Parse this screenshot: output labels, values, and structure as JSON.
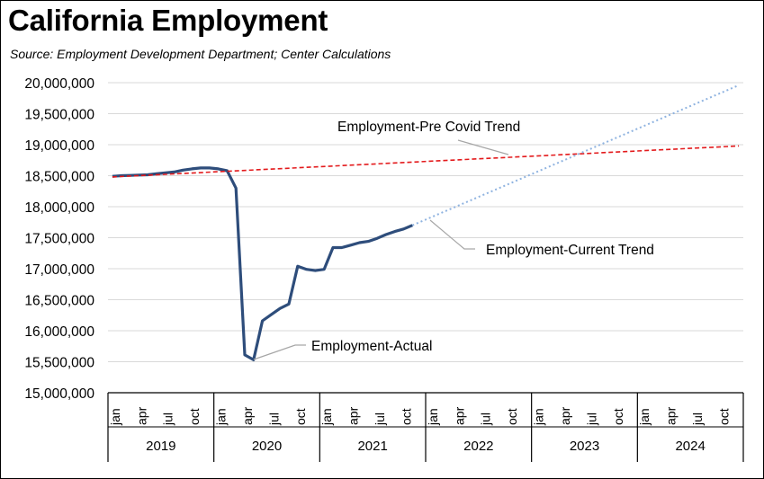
{
  "chart_data": {
    "type": "line",
    "title": "California Employment",
    "subtitle": "Source:  Employment Development Department; Center Calculations",
    "xlabel": "",
    "ylabel": "",
    "ylim": [
      15000000,
      20000000
    ],
    "yticks": [
      15000000,
      15500000,
      16000000,
      16500000,
      17000000,
      17500000,
      18000000,
      18500000,
      19000000,
      19500000,
      20000000
    ],
    "ytick_labels": [
      "15,000,000",
      "15,500,000",
      "16,000,000",
      "16,500,000",
      "17,000,000",
      "17,500,000",
      "18,000,000",
      "18,500,000",
      "19,000,000",
      "19,500,000",
      "20,000,000"
    ],
    "years": [
      "2019",
      "2020",
      "2021",
      "2022",
      "2023",
      "2024"
    ],
    "month_tick_labels": [
      "jan",
      "apr",
      "jul",
      "oct"
    ],
    "grid": true,
    "legend": "none",
    "series": [
      {
        "name": "Employment-Actual",
        "color": "#2e4d7b",
        "style": "solid",
        "x": [
          "2019-01",
          "2019-02",
          "2019-03",
          "2019-04",
          "2019-05",
          "2019-06",
          "2019-07",
          "2019-08",
          "2019-09",
          "2019-10",
          "2019-11",
          "2019-12",
          "2020-01",
          "2020-02",
          "2020-03",
          "2020-04",
          "2020-05",
          "2020-06",
          "2020-07",
          "2020-08",
          "2020-09",
          "2020-10",
          "2020-11",
          "2020-12",
          "2021-01",
          "2021-02",
          "2021-03",
          "2021-04",
          "2021-05",
          "2021-06",
          "2021-07",
          "2021-08",
          "2021-09",
          "2021-10",
          "2021-11"
        ],
        "y": [
          18490000,
          18500000,
          18505000,
          18510000,
          18515000,
          18530000,
          18545000,
          18560000,
          18590000,
          18610000,
          18625000,
          18625000,
          18610000,
          18580000,
          18300000,
          15610000,
          15530000,
          16160000,
          16260000,
          16360000,
          16430000,
          17040000,
          16990000,
          16970000,
          16990000,
          17340000,
          17340000,
          17380000,
          17420000,
          17440000,
          17490000,
          17550000,
          17600000,
          17640000,
          17700000
        ]
      },
      {
        "name": "Employment-Pre Covid Trend",
        "color": "#e31a1c",
        "style": "dashed",
        "x": [
          "2019-01",
          "2024-12"
        ],
        "y": [
          18480000,
          18980000
        ]
      },
      {
        "name": "Employment-Current Trend",
        "color": "#8fb3e0",
        "style": "dotted",
        "x": [
          "2021-11",
          "2024-12"
        ],
        "y": [
          17700000,
          19960000
        ]
      }
    ],
    "annotations": [
      {
        "text": "Employment-Pre Covid Trend",
        "x": "2023-01",
        "y": 18800000
      },
      {
        "text": "Employment-Current Trend",
        "x": "2021-12",
        "y": 17800000
      },
      {
        "text": "Employment-Actual",
        "x": "2020-05",
        "y": 15530000
      }
    ]
  }
}
